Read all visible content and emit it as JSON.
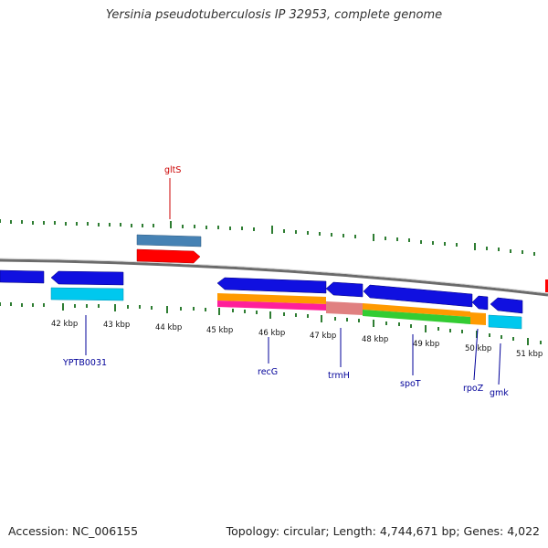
{
  "title": "Yersinia pseudotuberculosis IP 32953, complete genome",
  "footer": {
    "accession": "Accession: NC_006155",
    "summary": "Topology: circular; Length: 4,744,671 bp; Genes: 4,022"
  },
  "ticks": [
    "42 kbp",
    "43 kbp",
    "44 kbp",
    "45 kbp",
    "46 kbp",
    "47 kbp",
    "48 kbp",
    "49 kbp",
    "50 kbp",
    "51 kbp"
  ],
  "gene_labels": {
    "gltS": "gltS",
    "YPTB0031": "YPTB0031",
    "recG": "recG",
    "trmH": "trmH",
    "spoT": "spoT",
    "rpoZ": "rpoZ",
    "gmk": "gmk"
  },
  "colors": {
    "backbone": "#808080",
    "cds": "#1010e0",
    "cds_alt": "#00c8ee",
    "rna": "#ff0000",
    "steelblue": "#4682b4",
    "orange": "#ff9a00",
    "magenta": "#ff1f9a",
    "salmon": "#e08080",
    "green": "#33cc33",
    "label_red": "#cc0000",
    "label_blue": "#000099",
    "tick_green": "#2e7d32"
  }
}
